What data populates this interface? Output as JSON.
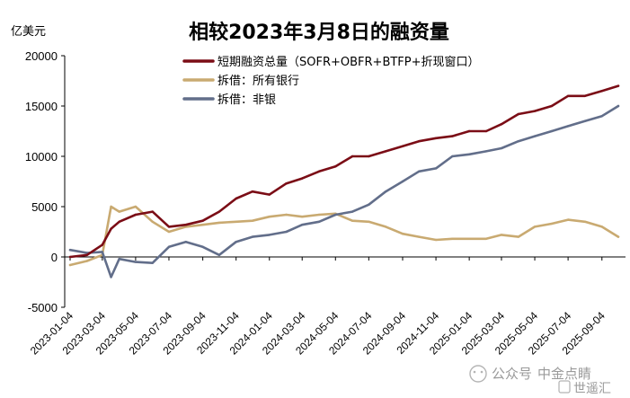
{
  "chart_data": {
    "type": "line",
    "title": "相较2023年3月8日的融资量",
    "ylabel": "亿美元",
    "xlabel": "",
    "ylim": [
      -5000,
      20000
    ],
    "yticks": [
      20000,
      15000,
      10000,
      5000,
      0,
      -5000
    ],
    "x_tick_labels": [
      "2023-01-04",
      "2023-03-04",
      "2023-05-04",
      "2023-07-04",
      "2023-09-04",
      "2023-11-04",
      "2024-01-04",
      "2024-03-04",
      "2024-05-04",
      "2024-07-04",
      "2024-09-04",
      "2024-11-04",
      "2025-01-04",
      "2025-03-04",
      "2025-05-04",
      "2025-07-04",
      "2025-09-04"
    ],
    "x": [
      "2023-01-04",
      "2023-02-04",
      "2023-03-04",
      "2023-03-20",
      "2023-04-04",
      "2023-05-04",
      "2023-06-04",
      "2023-07-04",
      "2023-08-04",
      "2023-09-04",
      "2023-10-04",
      "2023-11-04",
      "2023-12-04",
      "2024-01-04",
      "2024-02-04",
      "2024-03-04",
      "2024-04-04",
      "2024-05-04",
      "2024-06-04",
      "2024-07-04",
      "2024-08-04",
      "2024-09-04",
      "2024-10-04",
      "2024-11-04",
      "2024-12-04",
      "2025-01-04",
      "2025-02-04",
      "2025-03-04",
      "2025-04-04",
      "2025-05-04",
      "2025-06-04",
      "2025-07-04",
      "2025-08-04",
      "2025-09-04",
      "2025-10-04"
    ],
    "legend_position": "top",
    "grid": false,
    "series": [
      {
        "name": "短期融资总量（SOFR+OBFR+BTFP+折现窗口）",
        "color": "#7b0d16",
        "values": [
          0,
          200,
          1200,
          2800,
          3500,
          4200,
          4500,
          3000,
          3200,
          3600,
          4500,
          5800,
          6500,
          6200,
          7300,
          7800,
          8500,
          9000,
          10000,
          10000,
          10500,
          11000,
          11500,
          11800,
          12000,
          12500,
          12500,
          13200,
          14200,
          14500,
          15000,
          16000,
          16000,
          16500,
          17000
        ]
      },
      {
        "name": "拆借：所有银行",
        "color": "#c9aa71",
        "values": [
          -800,
          -400,
          200,
          5000,
          4500,
          5000,
          3500,
          2500,
          3000,
          3200,
          3400,
          3500,
          3600,
          4000,
          4200,
          4000,
          4200,
          4300,
          3600,
          3500,
          3000,
          2300,
          2000,
          1700,
          1800,
          1800,
          1800,
          2200,
          2000,
          3000,
          3300,
          3700,
          3500,
          3000,
          2000
        ]
      },
      {
        "name": "拆借：非银",
        "color": "#626e8a",
        "values": [
          700,
          400,
          500,
          -2000,
          -200,
          -500,
          -600,
          1000,
          1500,
          1000,
          200,
          1500,
          2000,
          2200,
          2500,
          3200,
          3500,
          4200,
          4500,
          5200,
          6500,
          7500,
          8500,
          8800,
          10000,
          10200,
          10500,
          10800,
          11500,
          12000,
          12500,
          13000,
          13500,
          14000,
          15000
        ]
      }
    ]
  },
  "watermark": {
    "platform": "公众号",
    "separator": "·",
    "name": "中金点睛",
    "logo_text": "世遥汇"
  }
}
